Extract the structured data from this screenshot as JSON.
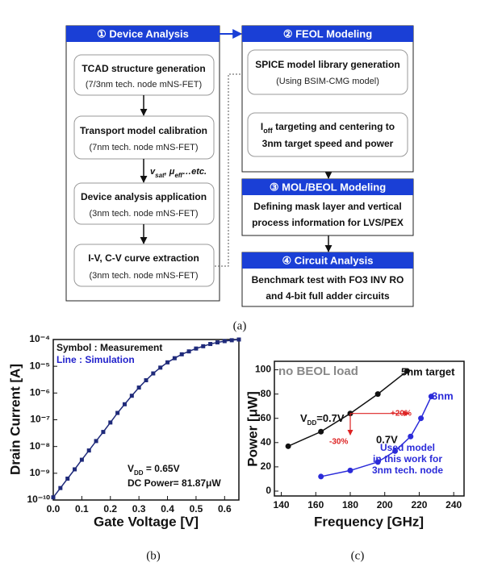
{
  "diagram": {
    "device_analysis": {
      "title": "① Device Analysis",
      "steps": [
        [
          "TCAD structure generation",
          "(7/3nm tech. node mNS-FET)"
        ],
        [
          "Transport model calibration",
          "(7nm tech. node mNS-FET)"
        ],
        [
          "Device analysis application",
          "(3nm tech. node mNS-FET)"
        ],
        [
          "I-V, C-V curve extraction",
          "(3nm tech. node mNS-FET)"
        ]
      ],
      "annotation": [
        "v",
        "sat",
        ", μ",
        "eff",
        "…etc."
      ]
    },
    "feol": {
      "title": "② FEOL Modeling",
      "steps": [
        [
          "SPICE model library generation",
          "(Using BSIM-CMG model)"
        ],
        [
          [
            "I",
            "off",
            " targeting and centering to"
          ],
          "3nm target speed and power"
        ]
      ]
    },
    "mol_beol": {
      "title": "③ MOL/BEOL Modeling",
      "lines": [
        "Defining mask layer and vertical",
        "process information for LVS/PEX"
      ]
    },
    "circuit": {
      "title": "④ Circuit Analysis",
      "lines": [
        "Benchmark test with FO3 INV RO",
        "and 4-bit full adder circuits"
      ]
    }
  },
  "captions": {
    "a": "(a)",
    "b": "(b)",
    "c": "(c)"
  },
  "chart_data": [
    {
      "type": "line",
      "log_y": true,
      "xlabel": "Gate Voltage [V]",
      "ylabel": "Drain Current [A]",
      "notes": [
        "Symbol : Measurement",
        "Line : Simulation",
        "DC Power= 81.87μW"
      ],
      "vdd_label": [
        "V",
        "DD",
        " = 0.65V"
      ],
      "x": [
        0,
        0.025,
        0.05,
        0.075,
        0.1,
        0.125,
        0.15,
        0.175,
        0.2,
        0.225,
        0.25,
        0.275,
        0.3,
        0.325,
        0.35,
        0.375,
        0.4,
        0.425,
        0.45,
        0.475,
        0.5,
        0.525,
        0.55,
        0.575,
        0.6,
        0.625,
        0.65
      ],
      "series": [
        {
          "color": "#1f2a7a",
          "marker": "square",
          "values": [
            1.26e-10,
            2.8e-10,
            6.3e-10,
            1.4e-09,
            3.2e-09,
            7.1e-09,
            1.6e-08,
            3.5e-08,
            7.9e-08,
            1.8e-07,
            3.8e-07,
            7.9e-07,
            1.6e-06,
            3e-06,
            5.4e-06,
            8.9e-06,
            1.4e-05,
            2e-05,
            2.8e-05,
            3.6e-05,
            4.6e-05,
            5.6e-05,
            6.8e-05,
            7.8e-05,
            8.7e-05,
            9.4e-05,
            0.0001
          ]
        }
      ],
      "xlim": [
        0,
        0.65
      ],
      "ylim": [
        1e-10,
        0.0001
      ],
      "xticks": [
        {
          "value": 0,
          "label": "0.0"
        },
        0.1,
        0.2,
        0.3,
        0.4,
        0.5,
        0.6
      ],
      "yticks": [
        {
          "value": 1e-10,
          "label": "10⁻¹⁰"
        },
        {
          "value": 1e-09,
          "label": "10⁻⁹"
        },
        {
          "value": 1e-08,
          "label": "10⁻⁸"
        },
        {
          "value": 1e-07,
          "label": "10⁻⁷"
        },
        {
          "value": 1e-06,
          "label": "10⁻⁶"
        },
        {
          "value": 1e-05,
          "label": "10⁻⁵"
        },
        {
          "value": 0.0001,
          "label": "10⁻⁴"
        }
      ]
    },
    {
      "type": "line",
      "xlabel": "Frequency [GHz]",
      "ylabel": "Power [μW]",
      "notes": [
        "no BEOL load",
        "0.7V",
        "+20%",
        "-30%"
      ],
      "vdd_label": [
        "V",
        "DD",
        "=0.7V"
      ],
      "model_note": [
        "Used model",
        "in this work for",
        "3nm tech. node"
      ],
      "series": [
        {
          "name": "5nm target",
          "color": "#111111",
          "marker": "circle",
          "x": [
            144,
            163,
            180,
            196,
            213
          ],
          "values": [
            37,
            49,
            64,
            80,
            99
          ]
        },
        {
          "name": "3nm",
          "color": "#2b2bd9",
          "marker": "circle",
          "x": [
            163,
            180,
            196,
            206,
            215,
            221,
            227
          ],
          "values": [
            12,
            17,
            24,
            33,
            45,
            60,
            78
          ]
        }
      ],
      "xlim": [
        136,
        246
      ],
      "ylim": [
        -4,
        107
      ],
      "xticks": [
        140,
        160,
        180,
        200,
        220,
        240
      ],
      "yticks": [
        0,
        20,
        40,
        60,
        80,
        100
      ]
    }
  ]
}
